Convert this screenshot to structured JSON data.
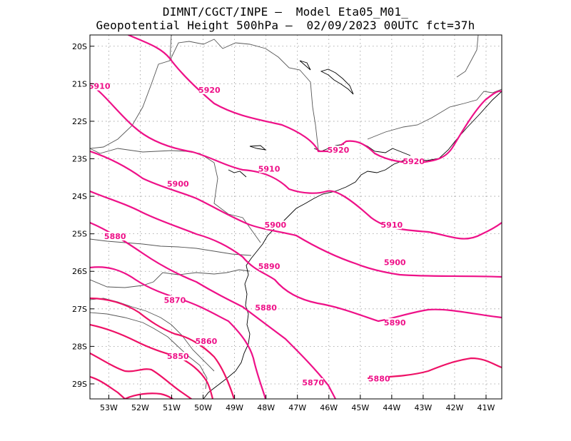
{
  "title": {
    "line1": "DIMNT/CGCT/INPE –  Model Eta05_M01_",
    "line2": "Geopotential Height 500hPa –  02/09/2023 00UTC fct=37h"
  },
  "colors": {
    "contour": "#ee1188",
    "contour_south": "#ee1166",
    "coast": "#000000",
    "border": "#555555",
    "grid": "#999999"
  },
  "map": {
    "lon_range": [
      -53.6,
      -40.5
    ],
    "lat_range": [
      -29.4,
      -19.7
    ],
    "lat_labels": [
      "20S",
      "21S",
      "22S",
      "23S",
      "24S",
      "25S",
      "26S",
      "27S",
      "28S",
      "29S"
    ],
    "lon_labels": [
      "53W",
      "52W",
      "51W",
      "50W",
      "49W",
      "48W",
      "47W",
      "46W",
      "45W",
      "44W",
      "43W",
      "42W",
      "41W"
    ],
    "contour_labels": [
      {
        "text": "5920",
        "lon": -49.8,
        "lat": -21.2
      },
      {
        "text": "5910",
        "lon": -53.3,
        "lat": -21.1
      },
      {
        "text": "5920",
        "lon": -45.7,
        "lat": -22.8
      },
      {
        "text": "5920",
        "lon": -43.3,
        "lat": -23.1
      },
      {
        "text": "5910",
        "lon": -47.9,
        "lat": -23.3
      },
      {
        "text": "5900",
        "lon": -50.8,
        "lat": -23.7
      },
      {
        "text": "5900",
        "lon": -47.7,
        "lat": -24.8
      },
      {
        "text": "5910",
        "lon": -44.0,
        "lat": -24.8
      },
      {
        "text": "5880",
        "lon": -52.8,
        "lat": -25.1
      },
      {
        "text": "5890",
        "lon": -47.9,
        "lat": -25.9
      },
      {
        "text": "5900",
        "lon": -43.9,
        "lat": -25.8
      },
      {
        "text": "5870",
        "lon": -50.9,
        "lat": -26.8
      },
      {
        "text": "5880",
        "lon": -48.0,
        "lat": -27.0
      },
      {
        "text": "5890",
        "lon": -43.9,
        "lat": -27.4
      },
      {
        "text": "5860",
        "lon": -49.9,
        "lat": -27.9
      },
      {
        "text": "5850",
        "lon": -50.8,
        "lat": -28.3
      },
      {
        "text": "5870",
        "lon": -46.5,
        "lat": -29.0
      },
      {
        "text": "5880",
        "lon": -44.4,
        "lat": -28.9
      }
    ]
  }
}
